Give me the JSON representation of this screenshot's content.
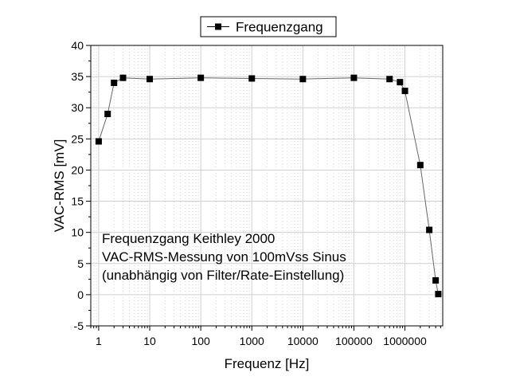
{
  "chart_data": {
    "type": "scatter",
    "x_scale": "log",
    "y_scale": "linear",
    "xlabel": "Frequenz [Hz]",
    "ylabel": "VAC-RMS [mV]",
    "xlim": [
      0.7,
      5500000
    ],
    "ylim": [
      -5,
      40
    ],
    "x_ticks": [
      1,
      10,
      100,
      1000,
      10000,
      100000,
      1000000
    ],
    "x_tick_labels": [
      "1",
      "10",
      "100",
      "1000",
      "10000",
      "100000",
      "1000000"
    ],
    "y_ticks": [
      -5,
      0,
      5,
      10,
      15,
      20,
      25,
      30,
      35,
      40
    ],
    "y_tick_labels": [
      "-5",
      "0",
      "5",
      "10",
      "15",
      "20",
      "25",
      "30",
      "35",
      "40"
    ],
    "grid": true,
    "legend_position": "top-center",
    "series": [
      {
        "name": "Frequenzgang",
        "color": "#000000",
        "marker": "square",
        "x": [
          1,
          1.5,
          2,
          3,
          10,
          100,
          1000,
          10000,
          100000,
          500000,
          800000,
          1000000,
          2000000,
          3000000,
          4000000,
          4500000
        ],
        "y": [
          24.6,
          29.0,
          34.0,
          34.8,
          34.6,
          34.8,
          34.7,
          34.6,
          34.8,
          34.6,
          34.1,
          32.7,
          20.8,
          10.4,
          2.3,
          0.1
        ]
      }
    ],
    "annotation_lines": [
      "Frequenzgang Keithley 2000",
      "VAC-RMS-Messung von 100mVss Sinus",
      "(unabhängig von Filter/Rate-Einstellung)"
    ]
  }
}
